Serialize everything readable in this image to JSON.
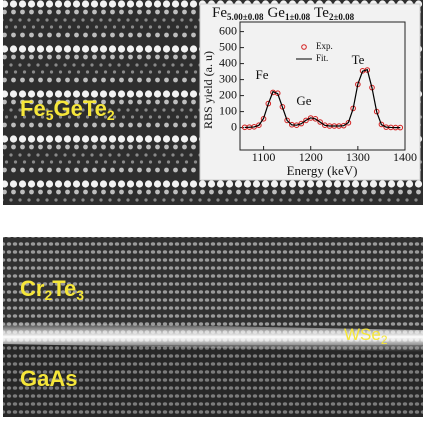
{
  "panels": {
    "top_label": [
      "Fe",
      "5",
      "GeTe",
      "2"
    ],
    "bottom_labels": {
      "upper": [
        "Cr",
        "2",
        "Te",
        "3"
      ],
      "lower": [
        "GaAs"
      ],
      "interface": [
        "WSe",
        "2"
      ]
    }
  },
  "chart_data": {
    "type": "scatter",
    "title": [
      "Fe",
      "5.00±0.08",
      "Ge",
      "1±0.08",
      "Te",
      "2±0.08"
    ],
    "y_label": "RBS yield (a. u)",
    "x_label": "Energy (keV)",
    "annotations": [
      "Fe",
      "Ge",
      "Te"
    ],
    "x": [
      1060,
      1070,
      1080,
      1090,
      1100,
      1110,
      1120,
      1130,
      1140,
      1150,
      1160,
      1170,
      1180,
      1190,
      1200,
      1210,
      1220,
      1230,
      1240,
      1250,
      1260,
      1270,
      1280,
      1290,
      1300,
      1310,
      1320,
      1330,
      1340,
      1350,
      1360,
      1370,
      1380,
      1390
    ],
    "series": [
      {
        "name": "Exp.",
        "color": "#d42020",
        "marker": "circle",
        "values": [
          2,
          3,
          5,
          15,
          55,
          150,
          220,
          215,
          130,
          45,
          18,
          15,
          25,
          45,
          60,
          55,
          35,
          15,
          10,
          10,
          10,
          12,
          30,
          120,
          270,
          355,
          360,
          250,
          100,
          20,
          3,
          1,
          0,
          0
        ]
      },
      {
        "name": "Fit.",
        "color": "#000000",
        "marker": "line",
        "values": [
          1,
          2,
          4,
          14,
          58,
          148,
          225,
          212,
          128,
          44,
          17,
          15,
          24,
          46,
          61,
          54,
          34,
          14,
          10,
          10,
          10,
          12,
          32,
          118,
          272,
          352,
          362,
          248,
          98,
          18,
          3,
          1,
          0,
          0
        ]
      }
    ],
    "xlim": [
      1050,
      1400
    ],
    "xticks": [
      1100,
      1200,
      1300,
      1400
    ],
    "ylim": [
      -140,
      660
    ],
    "yticks": [
      0,
      100,
      200,
      300,
      400,
      500,
      600
    ]
  }
}
